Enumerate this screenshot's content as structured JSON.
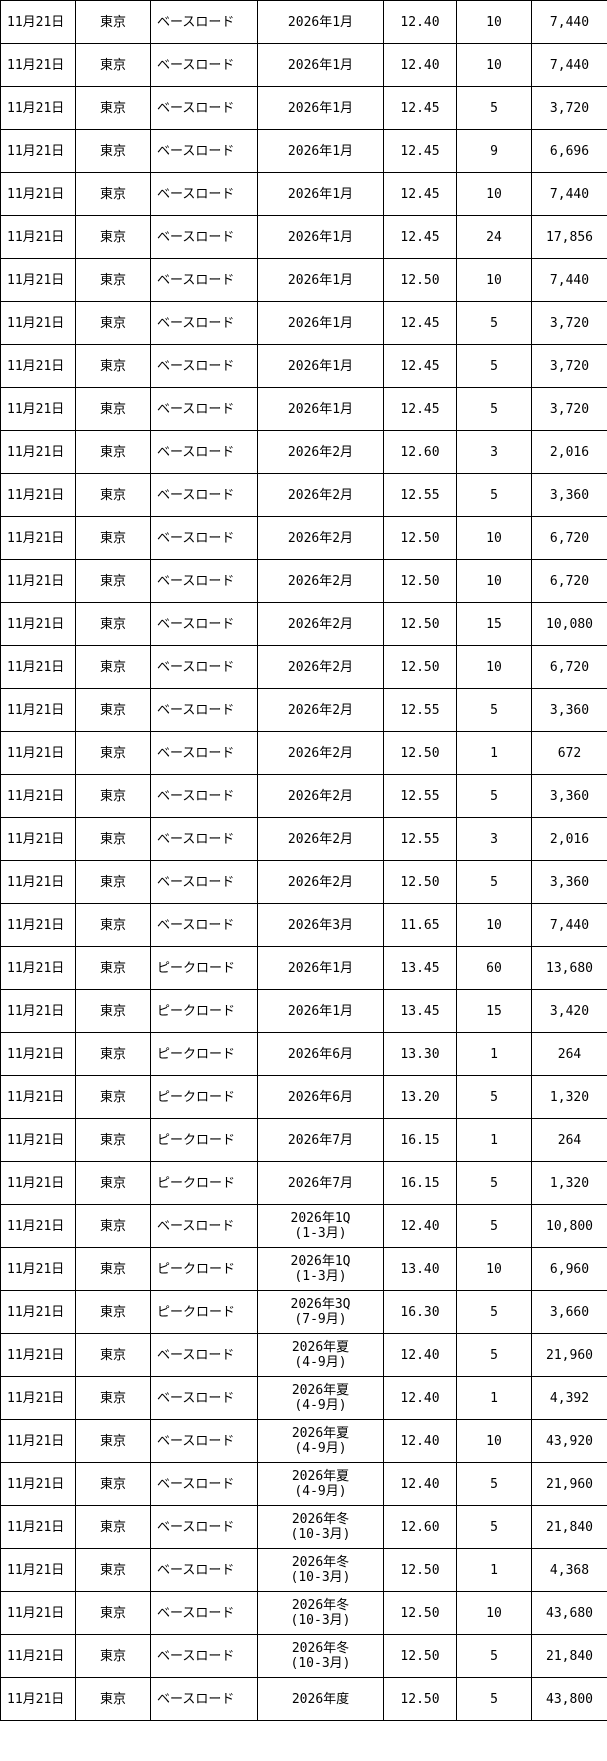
{
  "table": {
    "rows": [
      [
        "11月21日",
        "東京",
        "ベースロード",
        "2026年1月",
        "12.40",
        "10",
        "7,440"
      ],
      [
        "11月21日",
        "東京",
        "ベースロード",
        "2026年1月",
        "12.40",
        "10",
        "7,440"
      ],
      [
        "11月21日",
        "東京",
        "ベースロード",
        "2026年1月",
        "12.45",
        "5",
        "3,720"
      ],
      [
        "11月21日",
        "東京",
        "ベースロード",
        "2026年1月",
        "12.45",
        "9",
        "6,696"
      ],
      [
        "11月21日",
        "東京",
        "ベースロード",
        "2026年1月",
        "12.45",
        "10",
        "7,440"
      ],
      [
        "11月21日",
        "東京",
        "ベースロード",
        "2026年1月",
        "12.45",
        "24",
        "17,856"
      ],
      [
        "11月21日",
        "東京",
        "ベースロード",
        "2026年1月",
        "12.50",
        "10",
        "7,440"
      ],
      [
        "11月21日",
        "東京",
        "ベースロード",
        "2026年1月",
        "12.45",
        "5",
        "3,720"
      ],
      [
        "11月21日",
        "東京",
        "ベースロード",
        "2026年1月",
        "12.45",
        "5",
        "3,720"
      ],
      [
        "11月21日",
        "東京",
        "ベースロード",
        "2026年1月",
        "12.45",
        "5",
        "3,720"
      ],
      [
        "11月21日",
        "東京",
        "ベースロード",
        "2026年2月",
        "12.60",
        "3",
        "2,016"
      ],
      [
        "11月21日",
        "東京",
        "ベースロード",
        "2026年2月",
        "12.55",
        "5",
        "3,360"
      ],
      [
        "11月21日",
        "東京",
        "ベースロード",
        "2026年2月",
        "12.50",
        "10",
        "6,720"
      ],
      [
        "11月21日",
        "東京",
        "ベースロード",
        "2026年2月",
        "12.50",
        "10",
        "6,720"
      ],
      [
        "11月21日",
        "東京",
        "ベースロード",
        "2026年2月",
        "12.50",
        "15",
        "10,080"
      ],
      [
        "11月21日",
        "東京",
        "ベースロード",
        "2026年2月",
        "12.50",
        "10",
        "6,720"
      ],
      [
        "11月21日",
        "東京",
        "ベースロード",
        "2026年2月",
        "12.55",
        "5",
        "3,360"
      ],
      [
        "11月21日",
        "東京",
        "ベースロード",
        "2026年2月",
        "12.50",
        "1",
        "672"
      ],
      [
        "11月21日",
        "東京",
        "ベースロード",
        "2026年2月",
        "12.55",
        "5",
        "3,360"
      ],
      [
        "11月21日",
        "東京",
        "ベースロード",
        "2026年2月",
        "12.55",
        "3",
        "2,016"
      ],
      [
        "11月21日",
        "東京",
        "ベースロード",
        "2026年2月",
        "12.50",
        "5",
        "3,360"
      ],
      [
        "11月21日",
        "東京",
        "ベースロード",
        "2026年3月",
        "11.65",
        "10",
        "7,440"
      ],
      [
        "11月21日",
        "東京",
        "ピークロード",
        "2026年1月",
        "13.45",
        "60",
        "13,680"
      ],
      [
        "11月21日",
        "東京",
        "ピークロード",
        "2026年1月",
        "13.45",
        "15",
        "3,420"
      ],
      [
        "11月21日",
        "東京",
        "ピークロード",
        "2026年6月",
        "13.30",
        "1",
        "264"
      ],
      [
        "11月21日",
        "東京",
        "ピークロード",
        "2026年6月",
        "13.20",
        "5",
        "1,320"
      ],
      [
        "11月21日",
        "東京",
        "ピークロード",
        "2026年7月",
        "16.15",
        "1",
        "264"
      ],
      [
        "11月21日",
        "東京",
        "ピークロード",
        "2026年7月",
        "16.15",
        "5",
        "1,320"
      ],
      [
        "11月21日",
        "東京",
        "ベースロード",
        "2026年1Q\n(1-3月)",
        "12.40",
        "5",
        "10,800"
      ],
      [
        "11月21日",
        "東京",
        "ピークロード",
        "2026年1Q\n(1-3月)",
        "13.40",
        "10",
        "6,960"
      ],
      [
        "11月21日",
        "東京",
        "ピークロード",
        "2026年3Q\n(7-9月)",
        "16.30",
        "5",
        "3,660"
      ],
      [
        "11月21日",
        "東京",
        "ベースロード",
        "2026年夏\n(4-9月)",
        "12.40",
        "5",
        "21,960"
      ],
      [
        "11月21日",
        "東京",
        "ベースロード",
        "2026年夏\n(4-9月)",
        "12.40",
        "1",
        "4,392"
      ],
      [
        "11月21日",
        "東京",
        "ベースロード",
        "2026年夏\n(4-9月)",
        "12.40",
        "10",
        "43,920"
      ],
      [
        "11月21日",
        "東京",
        "ベースロード",
        "2026年夏\n(4-9月)",
        "12.40",
        "5",
        "21,960"
      ],
      [
        "11月21日",
        "東京",
        "ベースロード",
        "2026年冬\n(10-3月)",
        "12.60",
        "5",
        "21,840"
      ],
      [
        "11月21日",
        "東京",
        "ベースロード",
        "2026年冬\n(10-3月)",
        "12.50",
        "1",
        "4,368"
      ],
      [
        "11月21日",
        "東京",
        "ベースロード",
        "2026年冬\n(10-3月)",
        "12.50",
        "10",
        "43,680"
      ],
      [
        "11月21日",
        "東京",
        "ベースロード",
        "2026年冬\n(10-3月)",
        "12.50",
        "5",
        "21,840"
      ],
      [
        "11月21日",
        "東京",
        "ベースロード",
        "2026年度",
        "12.50",
        "5",
        "43,800"
      ]
    ]
  }
}
